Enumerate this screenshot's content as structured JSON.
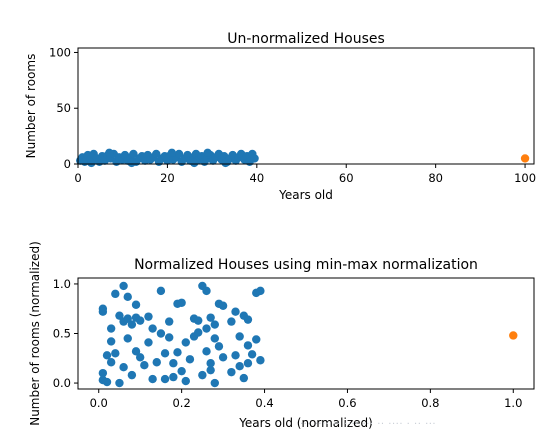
{
  "chart_data": [
    {
      "type": "scatter",
      "title": "Un-normalized Houses",
      "xlabel": "Years old",
      "ylabel": "Number of rooms",
      "xlim": [
        0,
        102
      ],
      "ylim": [
        0,
        104
      ],
      "xticks": [
        0,
        20,
        40,
        60,
        80,
        100
      ],
      "yticks": [
        0,
        50,
        100
      ],
      "grid": false,
      "series": [
        {
          "color": "#1f77b4",
          "points": [
            [
              0.5,
              3
            ],
            [
              1.0,
              6
            ],
            [
              1.5,
              2
            ],
            [
              2.2,
              8
            ],
            [
              2.8,
              4
            ],
            [
              3.5,
              9
            ],
            [
              4.1,
              5
            ],
            [
              4.8,
              2
            ],
            [
              5.4,
              7
            ],
            [
              6.0,
              3
            ],
            [
              6.7,
              8
            ],
            [
              7.3,
              5
            ],
            [
              8.0,
              9
            ],
            [
              8.6,
              2
            ],
            [
              9.2,
              6
            ],
            [
              9.9,
              4
            ],
            [
              10.5,
              8
            ],
            [
              11.1,
              3
            ],
            [
              11.8,
              6
            ],
            [
              12.4,
              9
            ],
            [
              13.0,
              2
            ],
            [
              13.7,
              5
            ],
            [
              14.3,
              7
            ],
            [
              15.0,
              3
            ],
            [
              15.6,
              8
            ],
            [
              16.2,
              4
            ],
            [
              16.9,
              6
            ],
            [
              17.5,
              9
            ],
            [
              18.1,
              2
            ],
            [
              18.8,
              5
            ],
            [
              19.4,
              7
            ],
            [
              20.0,
              3
            ],
            [
              20.7,
              8
            ],
            [
              21.3,
              4
            ],
            [
              22.0,
              6
            ],
            [
              22.6,
              9
            ],
            [
              23.2,
              2
            ],
            [
              23.9,
              5
            ],
            [
              24.5,
              8
            ],
            [
              25.1,
              3
            ],
            [
              25.8,
              6
            ],
            [
              26.4,
              9
            ],
            [
              27.0,
              4
            ],
            [
              27.7,
              7
            ],
            [
              28.3,
              2
            ],
            [
              28.9,
              5
            ],
            [
              29.6,
              8
            ],
            [
              30.2,
              3
            ],
            [
              30.8,
              6
            ],
            [
              31.5,
              9
            ],
            [
              32.1,
              4
            ],
            [
              32.7,
              7
            ],
            [
              33.4,
              2
            ],
            [
              34.0,
              5
            ],
            [
              34.6,
              8
            ],
            [
              35.3,
              3
            ],
            [
              35.9,
              6
            ],
            [
              36.5,
              9
            ],
            [
              37.2,
              4
            ],
            [
              37.8,
              7
            ],
            [
              38.4,
              2
            ],
            [
              39.0,
              9
            ],
            [
              39.5,
              5
            ],
            [
              3.0,
              1
            ],
            [
              12.0,
              1
            ],
            [
              26.0,
              1
            ],
            [
              33.0,
              1
            ],
            [
              7.0,
              10
            ],
            [
              21.0,
              10
            ],
            [
              29.0,
              10
            ]
          ]
        },
        {
          "color": "#ff7f0e",
          "points": [
            [
              100,
              5
            ]
          ]
        }
      ]
    },
    {
      "type": "scatter",
      "title": "Normalized Houses using min-max normalization",
      "xlabel": "Years old (normalized)",
      "ylabel": "Number of rooms (normalized)",
      "xlim": [
        -0.05,
        1.05
      ],
      "ylim": [
        -0.06,
        1.06
      ],
      "xticks": [
        0.0,
        0.2,
        0.4,
        0.6,
        0.8,
        1.0
      ],
      "yticks": [
        0.0,
        0.5,
        1.0
      ],
      "grid": false,
      "series": [
        {
          "color": "#1f77b4",
          "points": [
            [
              0.01,
              0.75
            ],
            [
              0.01,
              0.72
            ],
            [
              0.01,
              0.1
            ],
            [
              0.01,
              0.03
            ],
            [
              0.02,
              0.28
            ],
            [
              0.02,
              0.01
            ],
            [
              0.03,
              0.55
            ],
            [
              0.03,
              0.42
            ],
            [
              0.03,
              0.21
            ],
            [
              0.04,
              0.9
            ],
            [
              0.04,
              0.3
            ],
            [
              0.05,
              0.68
            ],
            [
              0.05,
              0.0
            ],
            [
              0.06,
              0.98
            ],
            [
              0.06,
              0.62
            ],
            [
              0.06,
              0.16
            ],
            [
              0.07,
              0.87
            ],
            [
              0.07,
              0.65
            ],
            [
              0.07,
              0.45
            ],
            [
              0.08,
              0.59
            ],
            [
              0.08,
              0.08
            ],
            [
              0.09,
              0.79
            ],
            [
              0.09,
              0.66
            ],
            [
              0.09,
              0.32
            ],
            [
              0.1,
              0.63
            ],
            [
              0.1,
              0.26
            ],
            [
              0.11,
              0.18
            ],
            [
              0.12,
              0.41
            ],
            [
              0.12,
              0.67
            ],
            [
              0.13,
              0.04
            ],
            [
              0.13,
              0.55
            ],
            [
              0.14,
              0.21
            ],
            [
              0.15,
              0.93
            ],
            [
              0.15,
              0.5
            ],
            [
              0.16,
              0.04
            ],
            [
              0.16,
              0.3
            ],
            [
              0.17,
              0.62
            ],
            [
              0.17,
              0.46
            ],
            [
              0.18,
              0.06
            ],
            [
              0.18,
              0.2
            ],
            [
              0.19,
              0.8
            ],
            [
              0.19,
              0.31
            ],
            [
              0.2,
              0.81
            ],
            [
              0.2,
              0.12
            ],
            [
              0.21,
              0.41
            ],
            [
              0.21,
              0.02
            ],
            [
              0.22,
              0.24
            ],
            [
              0.23,
              0.65
            ],
            [
              0.23,
              0.47
            ],
            [
              0.24,
              0.63
            ],
            [
              0.24,
              0.51
            ],
            [
              0.25,
              0.98
            ],
            [
              0.25,
              0.08
            ],
            [
              0.26,
              0.93
            ],
            [
              0.26,
              0.55
            ],
            [
              0.26,
              0.32
            ],
            [
              0.27,
              0.66
            ],
            [
              0.27,
              0.2
            ],
            [
              0.27,
              0.13
            ],
            [
              0.28,
              0.45
            ],
            [
              0.28,
              0.0
            ],
            [
              0.28,
              0.59
            ],
            [
              0.29,
              0.8
            ],
            [
              0.29,
              0.37
            ],
            [
              0.3,
              0.78
            ],
            [
              0.3,
              0.26
            ],
            [
              0.32,
              0.62
            ],
            [
              0.32,
              0.11
            ],
            [
              0.33,
              0.72
            ],
            [
              0.33,
              0.28
            ],
            [
              0.34,
              0.47
            ],
            [
              0.34,
              0.17
            ],
            [
              0.35,
              0.68
            ],
            [
              0.35,
              0.05
            ],
            [
              0.36,
              0.64
            ],
            [
              0.36,
              0.38
            ],
            [
              0.36,
              0.2
            ],
            [
              0.37,
              0.29
            ],
            [
              0.38,
              0.91
            ],
            [
              0.38,
              0.44
            ],
            [
              0.39,
              0.93
            ],
            [
              0.39,
              0.23
            ]
          ]
        },
        {
          "color": "#ff7f0e",
          "points": [
            [
              1.0,
              0.48
            ]
          ]
        }
      ]
    }
  ]
}
